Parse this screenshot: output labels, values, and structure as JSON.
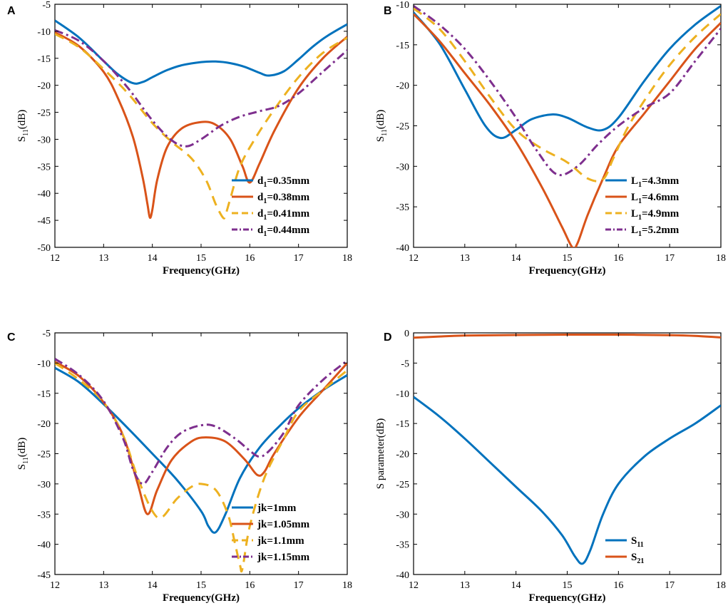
{
  "chart_data": [
    {
      "type": "line",
      "panel": "A",
      "xlabel": "Frequency(GHz)",
      "ylabel": "S11(dB)",
      "ylabel_main": "S",
      "ylabel_sub": "11",
      "ylabel_tail": "(dB)",
      "xlim": [
        12,
        18
      ],
      "ylim": [
        -50,
        -5
      ],
      "xticks": [
        12,
        13,
        14,
        15,
        16,
        17,
        18
      ],
      "yticks": [
        -5,
        -10,
        -15,
        -20,
        -25,
        -30,
        -35,
        -40,
        -45,
        -50
      ],
      "legend_position": "bottom-right",
      "series": [
        {
          "name": "d1=0.35mm",
          "label_main": "d",
          "label_sub": "1",
          "label_tail": "=0.35mm",
          "color": "#0072BD",
          "dash": "solid",
          "x": [
            12,
            12.5,
            13,
            13.3,
            13.6,
            13.8,
            14,
            14.3,
            14.6,
            15,
            15.3,
            15.6,
            15.9,
            16.2,
            16.4,
            16.7,
            17,
            17.3,
            17.6,
            18
          ],
          "y": [
            -8,
            -11.2,
            -15.5,
            -18,
            -19.6,
            -19.4,
            -18.5,
            -17.2,
            -16.3,
            -15.7,
            -15.6,
            -15.9,
            -16.6,
            -17.7,
            -18.2,
            -17.4,
            -15.2,
            -12.8,
            -10.8,
            -8.7
          ]
        },
        {
          "name": "d1=0.38mm",
          "label_main": "d",
          "label_sub": "1",
          "label_tail": "=0.38mm",
          "color": "#D95319",
          "dash": "solid",
          "x": [
            12,
            12.5,
            13,
            13.3,
            13.6,
            13.8,
            13.9,
            13.95,
            14,
            14.1,
            14.3,
            14.6,
            15,
            15.3,
            15.6,
            15.85,
            16,
            16.2,
            16.5,
            17,
            17.5,
            18
          ],
          "y": [
            -10.2,
            -12.8,
            -17.5,
            -22.5,
            -29.5,
            -37,
            -42,
            -44.5,
            -43,
            -37.5,
            -31.5,
            -28,
            -26.8,
            -27.3,
            -30,
            -35,
            -38,
            -34.5,
            -28.5,
            -20.5,
            -15,
            -11
          ]
        },
        {
          "name": "d1=0.41mm",
          "label_main": "d",
          "label_sub": "1",
          "label_tail": "=0.41mm",
          "color": "#EDB120",
          "dash": "dashed",
          "x": [
            12,
            12.5,
            13,
            13.5,
            14,
            14.4,
            14.8,
            15.1,
            15.3,
            15.45,
            15.5,
            15.6,
            15.8,
            16.1,
            16.5,
            17,
            17.5,
            18
          ],
          "y": [
            -10.5,
            -13,
            -17,
            -21.5,
            -27,
            -30.5,
            -33.5,
            -37.5,
            -42,
            -44.5,
            -44,
            -41,
            -35,
            -30,
            -24.5,
            -18.5,
            -14,
            -11.2
          ]
        },
        {
          "name": "d1=0.44mm",
          "label_main": "d",
          "label_sub": "1",
          "label_tail": "=0.44mm",
          "color": "#7E2F8E",
          "dash": "dashdot",
          "x": [
            12,
            12.5,
            13,
            13.5,
            14,
            14.4,
            14.7,
            15,
            15.4,
            15.8,
            16.2,
            16.6,
            17,
            17.5,
            18
          ],
          "y": [
            -9.8,
            -11.8,
            -15.5,
            -20.5,
            -26.5,
            -30.2,
            -31.3,
            -30,
            -27.5,
            -25.8,
            -24.8,
            -23.8,
            -21.5,
            -17.5,
            -13.5
          ]
        }
      ]
    },
    {
      "type": "line",
      "panel": "B",
      "xlabel": "Frequency(GHz)",
      "ylabel": "S11(dB)",
      "ylabel_main": "S",
      "ylabel_sub": "11",
      "ylabel_tail": "(dB)",
      "xlim": [
        12,
        18
      ],
      "ylim": [
        -40,
        -10
      ],
      "xticks": [
        12,
        13,
        14,
        15,
        16,
        17,
        18
      ],
      "yticks": [
        -10,
        -15,
        -20,
        -25,
        -30,
        -35,
        -40
      ],
      "legend_position": "bottom-right",
      "series": [
        {
          "name": "L1=4.3mm",
          "label_main": "L",
          "label_sub": "1",
          "label_tail": "=4.3mm",
          "color": "#0072BD",
          "dash": "solid",
          "x": [
            12,
            12.5,
            13,
            13.4,
            13.7,
            14,
            14.3,
            14.7,
            15,
            15.4,
            15.7,
            16,
            16.5,
            17,
            17.5,
            18
          ],
          "y": [
            -11,
            -14.8,
            -20.5,
            -25,
            -26.5,
            -25.5,
            -24.2,
            -23.6,
            -24,
            -25.2,
            -25.5,
            -24,
            -19.5,
            -15.5,
            -12.5,
            -10.2
          ]
        },
        {
          "name": "L1=4.6mm",
          "label_main": "L",
          "label_sub": "1",
          "label_tail": "=4.6mm",
          "color": "#D95319",
          "dash": "solid",
          "x": [
            12,
            12.5,
            13,
            13.5,
            14,
            14.5,
            14.9,
            15.1,
            15.2,
            15.4,
            15.7,
            16,
            16.5,
            17,
            17.5,
            18
          ],
          "y": [
            -11.2,
            -14.5,
            -18.5,
            -22.5,
            -27,
            -32.5,
            -37.5,
            -40,
            -39.5,
            -36,
            -31.5,
            -27.5,
            -23.5,
            -19.5,
            -15.5,
            -12.3
          ]
        },
        {
          "name": "L1=4.9mm",
          "label_main": "L",
          "label_sub": "1",
          "label_tail": "=4.9mm",
          "color": "#EDB120",
          "dash": "dashed",
          "x": [
            12,
            12.5,
            13,
            13.5,
            14,
            14.5,
            15,
            15.4,
            15.7,
            15.9,
            16.2,
            16.6,
            17,
            17.5,
            18
          ],
          "y": [
            -10.5,
            -13,
            -17,
            -21.5,
            -25.5,
            -27.8,
            -29.5,
            -31.5,
            -31.6,
            -29,
            -25,
            -21,
            -17.5,
            -14,
            -11.2
          ]
        },
        {
          "name": "L1=5.2mm",
          "label_main": "L",
          "label_sub": "1",
          "label_tail": "=5.2mm",
          "color": "#7E2F8E",
          "dash": "dashdot",
          "x": [
            12,
            12.5,
            13,
            13.5,
            14,
            14.4,
            14.8,
            15.2,
            15.6,
            16,
            16.5,
            17,
            17.5,
            18
          ],
          "y": [
            -10.2,
            -12.5,
            -15.5,
            -19.5,
            -24,
            -28,
            -31,
            -30,
            -27.3,
            -25,
            -22.8,
            -21,
            -17,
            -13
          ]
        }
      ]
    },
    {
      "type": "line",
      "panel": "C",
      "xlabel": "Frequency(GHz)",
      "ylabel": "S11(dB)",
      "ylabel_main": "S",
      "ylabel_sub": "11",
      "ylabel_tail": "(dB)",
      "xlim": [
        12,
        18
      ],
      "ylim": [
        -45,
        -5
      ],
      "xticks": [
        12,
        13,
        14,
        15,
        16,
        17,
        18
      ],
      "yticks": [
        -5,
        -10,
        -15,
        -20,
        -25,
        -30,
        -35,
        -40,
        -45
      ],
      "legend_position": "bottom-right",
      "series": [
        {
          "name": "jk=1mm",
          "label_main": "jk=1mm",
          "label_sub": "",
          "label_tail": "",
          "color": "#0072BD",
          "dash": "solid",
          "x": [
            12,
            12.5,
            13,
            13.5,
            14,
            14.5,
            15,
            15.15,
            15.3,
            15.5,
            15.8,
            16.2,
            16.6,
            17,
            17.5,
            18
          ],
          "y": [
            -10.8,
            -13.2,
            -16.8,
            -20.8,
            -25,
            -29.3,
            -34.5,
            -37,
            -38,
            -35,
            -29,
            -24,
            -20.5,
            -17.5,
            -14.5,
            -12
          ]
        },
        {
          "name": "jk=1.05mm",
          "label_main": "jk=1.05mm",
          "label_sub": "",
          "label_tail": "",
          "color": "#D95319",
          "dash": "solid",
          "x": [
            12,
            12.5,
            13,
            13.4,
            13.7,
            13.9,
            14.1,
            14.4,
            14.8,
            15.1,
            15.5,
            15.9,
            16.15,
            16.3,
            16.5,
            17,
            17.5,
            18
          ],
          "y": [
            -9.8,
            -12.2,
            -16.5,
            -22,
            -30,
            -35,
            -31,
            -26,
            -23,
            -22.3,
            -23,
            -26,
            -28.5,
            -28,
            -25,
            -19,
            -14.5,
            -10
          ]
        },
        {
          "name": "jk=1.1mm",
          "label_main": "jk=1.1mm",
          "label_sub": "",
          "label_tail": "",
          "color": "#EDB120",
          "dash": "dashed",
          "x": [
            12,
            12.5,
            13,
            13.4,
            13.7,
            14,
            14.2,
            14.5,
            14.8,
            15,
            15.3,
            15.55,
            15.7,
            15.8,
            15.85,
            16,
            16.3,
            16.7,
            17,
            17.5,
            18
          ],
          "y": [
            -10,
            -12.8,
            -16.5,
            -22,
            -29,
            -34.5,
            -35.5,
            -32.5,
            -30.5,
            -30,
            -31,
            -35,
            -40,
            -43.5,
            -44,
            -37,
            -29,
            -22.5,
            -18,
            -14.5,
            -11.2
          ]
        },
        {
          "name": "jk=1.15mm",
          "label_main": "jk=1.15mm",
          "label_sub": "",
          "label_tail": "",
          "color": "#7E2F8E",
          "dash": "dashdot",
          "x": [
            12,
            12.5,
            13,
            13.4,
            13.6,
            13.8,
            14,
            14.3,
            14.6,
            15,
            15.3,
            15.7,
            16,
            16.2,
            16.4,
            16.7,
            17,
            17.5,
            18
          ],
          "y": [
            -9.3,
            -12,
            -16.3,
            -22.5,
            -27.5,
            -30,
            -28,
            -24,
            -21.5,
            -20.3,
            -20.5,
            -22.5,
            -24.5,
            -25.5,
            -24.5,
            -21.5,
            -17,
            -12.8,
            -9.6
          ]
        }
      ]
    },
    {
      "type": "line",
      "panel": "D",
      "xlabel": "Frequency(GHz)",
      "ylabel": "S parameter(dB)",
      "ylabel_main": "S parameter(dB)",
      "ylabel_sub": "",
      "ylabel_tail": "",
      "xlim": [
        12,
        18
      ],
      "ylim": [
        -40,
        0
      ],
      "xticks": [
        12,
        13,
        14,
        15,
        16,
        17,
        18
      ],
      "yticks": [
        0,
        -5,
        -10,
        -15,
        -20,
        -25,
        -30,
        -35,
        -40
      ],
      "legend_position": "bottom-right",
      "series": [
        {
          "name": "S11",
          "label_main": "S",
          "label_sub": "11",
          "label_tail": "",
          "color": "#0072BD",
          "dash": "solid",
          "x": [
            12,
            12.5,
            13,
            13.5,
            14,
            14.5,
            14.9,
            15.15,
            15.3,
            15.45,
            15.7,
            16,
            16.5,
            17,
            17.5,
            18
          ],
          "y": [
            -10.6,
            -13.8,
            -17.5,
            -21.5,
            -25.5,
            -29.5,
            -33.5,
            -37,
            -38.2,
            -36,
            -30,
            -25,
            -20.5,
            -17.5,
            -15,
            -12
          ]
        },
        {
          "name": "S21",
          "label_main": "S",
          "label_sub": "21",
          "label_tail": "",
          "color": "#D95319",
          "dash": "solid",
          "x": [
            12,
            12.5,
            13,
            14,
            15,
            16,
            17,
            17.5,
            18
          ],
          "y": [
            -0.8,
            -0.6,
            -0.45,
            -0.35,
            -0.3,
            -0.3,
            -0.38,
            -0.5,
            -0.75
          ]
        }
      ]
    }
  ]
}
